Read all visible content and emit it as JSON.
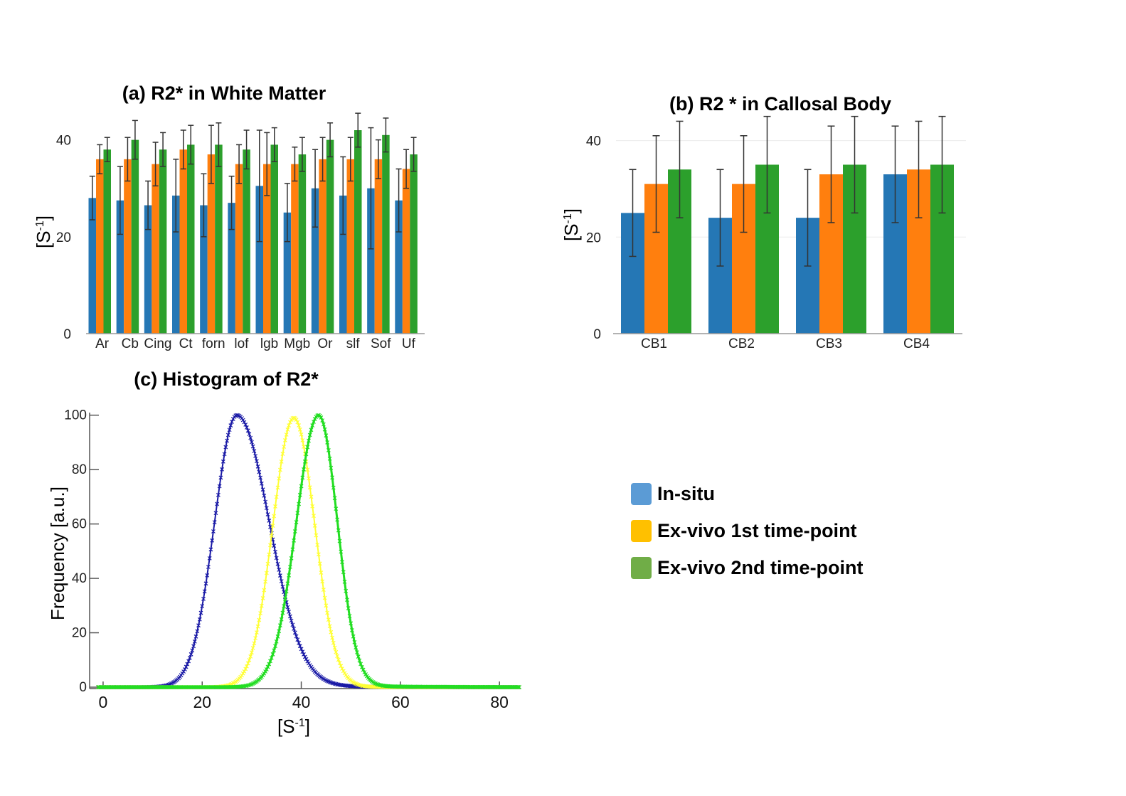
{
  "colors": {
    "insitu_bar": "#2577b5",
    "exvivo1_bar": "#ff7f0e",
    "exvivo2_bar": "#2ca02c",
    "insitu_hist": "#1a1aa6",
    "exvivo1_hist": "#ffff33",
    "exvivo2_hist": "#22dd22",
    "legend_insitu": "#5b9bd5",
    "legend_exvivo1": "#ffc000",
    "legend_exvivo2": "#70ad47"
  },
  "legend": {
    "items": [
      {
        "label": "In-situ",
        "color": "#5b9bd5"
      },
      {
        "label": "Ex-vivo 1st time-point",
        "color": "#ffc000"
      },
      {
        "label": "Ex-vivo 2nd time-point",
        "color": "#70ad47"
      }
    ]
  },
  "chart_data": [
    {
      "id": "a",
      "type": "bar",
      "title": "(a) R2* in White Matter",
      "ylabel_base": "[S",
      "ylabel_sup": "-1",
      "ylabel_end": "]",
      "xlabel": "",
      "ylim": [
        0,
        42
      ],
      "yticks": [
        0,
        20,
        40
      ],
      "categories": [
        "Ar",
        "Cb",
        "Cing",
        "Ct",
        "forn",
        "lof",
        "lgb",
        "Mgb",
        "Or",
        "slf",
        "Sof",
        "Uf"
      ],
      "series": [
        {
          "name": "In-situ",
          "values": [
            28,
            27.5,
            26.5,
            28.5,
            26.5,
            27,
            30.5,
            25,
            30,
            28.5,
            30,
            27.5
          ],
          "errors": [
            4.5,
            7,
            5,
            7.5,
            6.5,
            5.5,
            11.5,
            6,
            8,
            8,
            12.5,
            6.5
          ]
        },
        {
          "name": "Ex-vivo 1st time-point",
          "values": [
            36,
            36,
            35,
            38,
            37,
            35,
            35,
            35,
            36,
            36,
            36,
            34
          ],
          "errors": [
            3,
            4.5,
            4.5,
            4,
            6,
            4,
            6.5,
            3.5,
            4.5,
            4.5,
            4,
            4
          ]
        },
        {
          "name": "Ex-vivo 2nd time-point",
          "values": [
            38,
            40,
            38,
            39,
            39,
            38,
            39,
            37,
            40,
            42,
            41,
            37
          ],
          "errors": [
            2.5,
            4,
            3.5,
            4,
            4.5,
            4,
            3.5,
            3.5,
            3.5,
            3.5,
            3.5,
            3.5
          ]
        }
      ]
    },
    {
      "id": "b",
      "type": "bar",
      "title": "(b) R2 * in Callosal Body",
      "ylabel_base": "[S",
      "ylabel_sup": "-1",
      "ylabel_end": "]",
      "xlabel": "",
      "ylim": [
        0,
        42
      ],
      "yticks": [
        0,
        20,
        40
      ],
      "categories": [
        "CB1",
        "CB2",
        "CB3",
        "CB4"
      ],
      "series": [
        {
          "name": "In-situ",
          "values": [
            25,
            24,
            24,
            33
          ],
          "errors": [
            9,
            10,
            10,
            10
          ]
        },
        {
          "name": "Ex-vivo 1st time-point",
          "values": [
            31,
            31,
            33,
            34
          ],
          "errors": [
            10,
            10,
            10,
            10
          ]
        },
        {
          "name": "Ex-vivo 2nd time-point",
          "values": [
            34,
            35,
            35,
            35
          ],
          "errors": [
            10,
            10,
            10,
            10
          ]
        }
      ]
    },
    {
      "id": "c",
      "type": "line",
      "title": "(c) Histogram of R2*",
      "xlabel_base": "[S",
      "xlabel_sup": "-1",
      "xlabel_end": "]",
      "ylabel": "Frequency [a.u.]",
      "xlim": [
        -2,
        85
      ],
      "ylim": [
        0,
        102
      ],
      "xticks": [
        0,
        20,
        40,
        60,
        80
      ],
      "yticks": [
        0,
        20,
        40,
        60,
        80,
        100
      ],
      "series": [
        {
          "name": "In-situ",
          "peak_x": 27,
          "peak_y": 100,
          "width_left": 4.5,
          "width_right": 6.5,
          "tail": 1.5
        },
        {
          "name": "Ex-vivo 1st time-point",
          "peak_x": 38.5,
          "peak_y": 99,
          "width_left": 4.2,
          "width_right": 4.2,
          "tail": 0.3
        },
        {
          "name": "Ex-vivo 2nd time-point",
          "peak_x": 43.5,
          "peak_y": 100,
          "width_left": 4.5,
          "width_right": 3.8,
          "tail": 0.8
        }
      ]
    }
  ]
}
